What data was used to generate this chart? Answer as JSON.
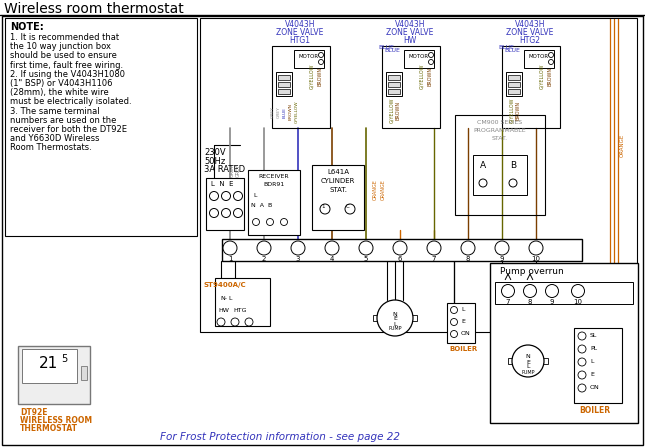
{
  "title": "Wireless room thermostat",
  "bg_color": "#ffffff",
  "note_lines": [
    "NOTE:",
    "1. It is recommended that",
    "the 10 way junction box",
    "should be used to ensure",
    "first time, fault free wiring.",
    "2. If using the V4043H1080",
    "(1\" BSP) or V4043H1106",
    "(28mm), the white wire",
    "must be electrically isolated.",
    "3. The same terminal",
    "numbers are used on the",
    "receiver for both the DT92E",
    "and Y6630D Wireless",
    "Room Thermostats."
  ],
  "footer": "For Frost Protection information - see page 22",
  "c_blue": "#3333bb",
  "c_orange": "#cc6600",
  "c_grey": "#888888",
  "c_brown": "#7b3f00",
  "c_gyellow": "#666600",
  "c_black": "#000000",
  "c_red": "#cc0000",
  "terminal_numbers": [
    "1",
    "2",
    "3",
    "4",
    "5",
    "6",
    "7",
    "8",
    "9",
    "10"
  ]
}
